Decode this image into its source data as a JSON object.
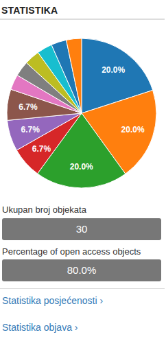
{
  "header": {
    "title": "STATISTIKA"
  },
  "chart_data": {
    "type": "pie",
    "values": [
      20,
      20,
      20,
      6.7,
      6.7,
      6.7,
      3.3,
      3.3,
      3.3,
      3.3,
      3.3,
      3.3
    ],
    "value_labels": [
      "20.0%",
      "20.0%",
      "20.0%",
      "6.7%",
      "6.7%",
      "6.7%",
      null,
      null,
      null,
      null,
      null,
      null
    ],
    "colors": [
      "#1f77b4",
      "#ff7f0e",
      "#2ca02c",
      "#d62728",
      "#9467bd",
      "#8c564b",
      "#e377c2",
      "#7f7f7f",
      "#bcbd22",
      "#17becf",
      "#1f77b4",
      "#ff7f0e"
    ],
    "data_labels": true
  },
  "stats": [
    {
      "label": "Ukupan broj objekata",
      "value": "30"
    },
    {
      "label": "Percentage of open access objects",
      "value": "80.0%"
    }
  ],
  "links": [
    "Statistika posjećenosti ›",
    "Statistika objava ›"
  ]
}
